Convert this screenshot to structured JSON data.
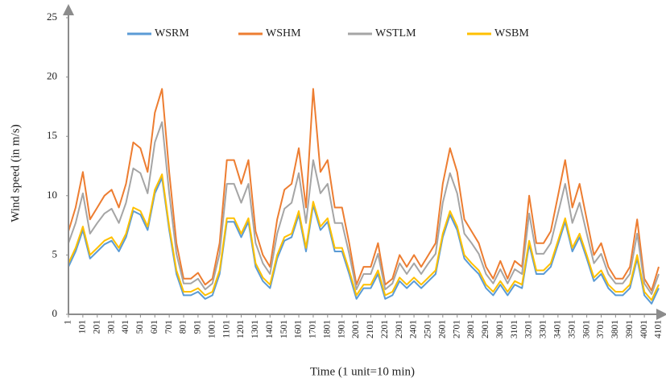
{
  "chart_data": {
    "type": "line",
    "x_label": "Time (1 unit=10 min)",
    "y_label": "Wind speed (in m/s)",
    "x": [
      1,
      51,
      101,
      151,
      201,
      251,
      301,
      351,
      401,
      451,
      501,
      551,
      601,
      651,
      701,
      751,
      801,
      851,
      901,
      951,
      1001,
      1051,
      1101,
      1151,
      1201,
      1251,
      1301,
      1351,
      1401,
      1451,
      1501,
      1551,
      1601,
      1651,
      1701,
      1751,
      1801,
      1851,
      1901,
      1951,
      2001,
      2051,
      2101,
      2151,
      2201,
      2251,
      2301,
      2351,
      2401,
      2451,
      2501,
      2551,
      2601,
      2651,
      2701,
      2751,
      2801,
      2851,
      2901,
      2951,
      3001,
      3051,
      3101,
      3151,
      3201,
      3251,
      3301,
      3351,
      3401,
      3451,
      3501,
      3551,
      3601,
      3651,
      3701,
      3751,
      3801,
      3851,
      3901,
      3951,
      4001,
      4051,
      4101
    ],
    "series": [
      {
        "name": "WSRM",
        "color": "#5b9bd5",
        "values": [
          4,
          5.3,
          7.1,
          4.7,
          5.3,
          5.9,
          6.2,
          5.3,
          6.5,
          8.7,
          8.4,
          7.1,
          10.2,
          11.5,
          7.1,
          3.4,
          1.6,
          1.6,
          1.9,
          1.3,
          1.6,
          3.4,
          7.8,
          7.8,
          6.5,
          7.8,
          4,
          2.8,
          2.2,
          4.7,
          6.2,
          6.5,
          8.4,
          5.3,
          9.2,
          7.1,
          7.8,
          5.3,
          5.3,
          3.4,
          1.3,
          2.2,
          2.2,
          3.4,
          1.3,
          1.6,
          2.8,
          2.2,
          2.8,
          2.2,
          2.8,
          3.4,
          6.5,
          8.4,
          7.1,
          4.7,
          4,
          3.4,
          2.2,
          1.6,
          2.5,
          1.6,
          2.5,
          2.2,
          5.9,
          3.4,
          3.4,
          4,
          5.9,
          7.8,
          5.3,
          6.5,
          4.7,
          2.8,
          3.4,
          2.2,
          1.6,
          1.6,
          2.2,
          4.7,
          1.6,
          0.9,
          2.2
        ]
      },
      {
        "name": "WSHM",
        "color": "#ed7d31",
        "values": [
          7,
          9,
          12,
          8,
          9,
          10,
          10.5,
          9,
          11,
          14.5,
          14,
          12,
          17,
          19,
          12,
          6,
          3,
          3,
          3.5,
          2.5,
          3,
          6,
          13,
          13,
          11,
          13,
          7,
          5,
          4,
          8,
          10.5,
          11,
          14,
          9,
          19,
          12,
          13,
          9,
          9,
          6,
          2.5,
          4,
          4,
          6,
          2.5,
          3,
          5,
          4,
          5,
          4,
          5,
          6,
          11,
          14,
          12,
          8,
          7,
          6,
          4,
          3,
          4.5,
          3,
          4.5,
          4,
          10,
          6,
          6,
          7,
          10,
          13,
          9,
          11,
          8,
          5,
          6,
          4,
          3,
          3,
          4,
          8,
          3,
          2,
          4
        ]
      },
      {
        "name": "WSTLM",
        "color": "#a5a5a5",
        "values": [
          6,
          7.7,
          10.2,
          6.8,
          7.7,
          8.5,
          8.9,
          7.7,
          9.4,
          12.3,
          11.9,
          10.2,
          14.5,
          16.2,
          10.2,
          5.1,
          2.6,
          2.6,
          3,
          2.1,
          2.6,
          5.1,
          11,
          11,
          9.4,
          11,
          6,
          4.3,
          3.4,
          6.8,
          8.9,
          9.4,
          11.9,
          7.7,
          13,
          10.2,
          11,
          7.7,
          7.7,
          5.1,
          2.1,
          3.4,
          3.4,
          5.1,
          2.1,
          2.6,
          4.3,
          3.4,
          4.3,
          3.4,
          4.3,
          5.1,
          9.4,
          11.9,
          10.2,
          6.8,
          6,
          5.1,
          3.4,
          2.6,
          3.8,
          2.6,
          3.8,
          3.4,
          8.5,
          5.1,
          5.1,
          6,
          8.5,
          11,
          7.7,
          9.4,
          6.8,
          4.3,
          5.1,
          3.4,
          2.6,
          2.6,
          3.4,
          6.8,
          2.6,
          1.7,
          3.4
        ]
      },
      {
        "name": "WSBM",
        "color": "#ffc000",
        "values": [
          4.3,
          5.6,
          7.4,
          5,
          5.6,
          6.2,
          6.5,
          5.6,
          6.8,
          9,
          8.7,
          7.4,
          10.5,
          11.8,
          7.4,
          3.7,
          1.9,
          1.9,
          2.2,
          1.6,
          1.9,
          3.7,
          8.1,
          8.1,
          6.8,
          8.1,
          4.3,
          3.1,
          2.5,
          5,
          6.5,
          6.8,
          8.7,
          5.6,
          9.5,
          7.4,
          8.1,
          5.6,
          5.6,
          3.7,
          1.6,
          2.5,
          2.5,
          3.7,
          1.6,
          1.9,
          3.1,
          2.5,
          3.1,
          2.5,
          3.1,
          3.7,
          6.8,
          8.7,
          7.4,
          5,
          4.3,
          3.7,
          2.5,
          1.9,
          2.8,
          1.9,
          2.8,
          2.5,
          6.2,
          3.7,
          3.7,
          4.3,
          6.2,
          8.1,
          5.6,
          6.8,
          5,
          3.1,
          3.7,
          2.5,
          1.9,
          1.9,
          2.5,
          5,
          1.9,
          1.2,
          2.5
        ]
      }
    ],
    "xlim": [
      1,
      4101
    ],
    "xticks": [
      1,
      101,
      201,
      301,
      401,
      501,
      601,
      701,
      801,
      901,
      1001,
      1101,
      1201,
      1301,
      1401,
      1501,
      1601,
      1701,
      1801,
      1901,
      2001,
      2101,
      2201,
      2301,
      2401,
      2501,
      2601,
      2701,
      2801,
      2901,
      3001,
      3101,
      3201,
      3301,
      3401,
      3501,
      3601,
      3701,
      3801,
      3901,
      4001,
      4101
    ],
    "ylim": [
      0,
      25
    ],
    "yticks": [
      0,
      5,
      10,
      15,
      20,
      25
    ],
    "grid": false,
    "legend": "top"
  }
}
